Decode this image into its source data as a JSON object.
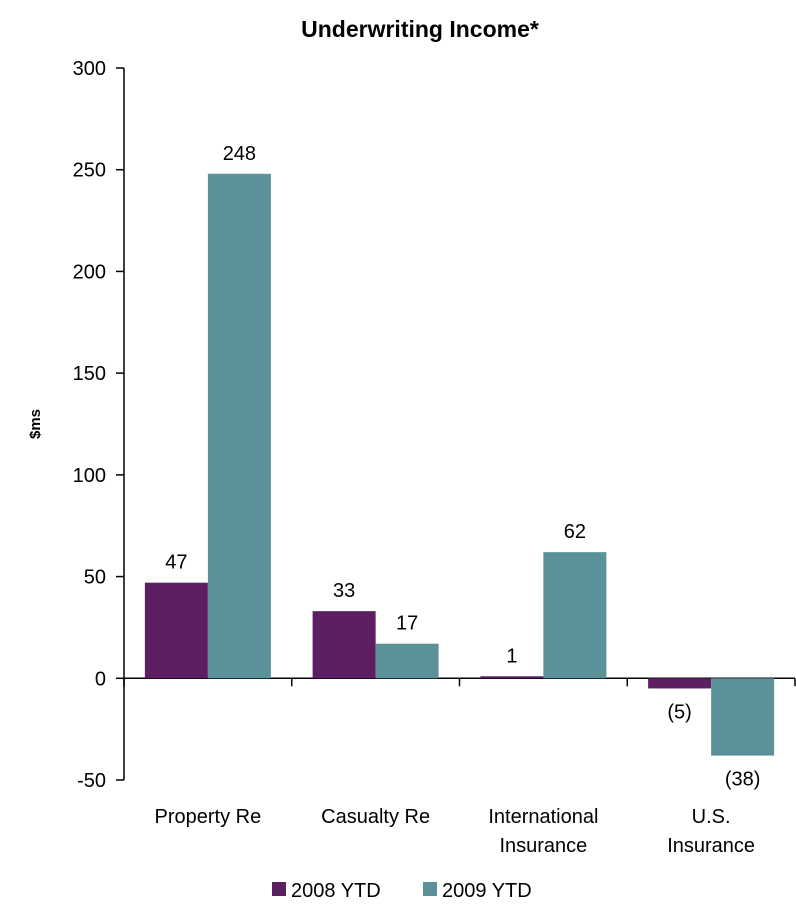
{
  "chart_data": {
    "type": "bar",
    "title": "Underwriting Income*",
    "ylabel": "$ms",
    "xlabel": "",
    "ylim": [
      -50,
      300
    ],
    "yticks": [
      300,
      250,
      200,
      150,
      100,
      50,
      0,
      -50
    ],
    "grid": false,
    "legend_position": "bottom",
    "categories": [
      [
        "Property Re"
      ],
      [
        "Casualty Re"
      ],
      [
        "International",
        "Insurance"
      ],
      [
        "U.S.",
        "Insurance"
      ]
    ],
    "series": [
      {
        "name": "2008 YTD",
        "color": "#5b1f62",
        "values": [
          47,
          33,
          1,
          -5
        ],
        "labels": [
          "47",
          "33",
          "1",
          "(5)"
        ]
      },
      {
        "name": "2009 YTD",
        "color": "#5b9199",
        "values": [
          248,
          17,
          62,
          -38
        ],
        "labels": [
          "248",
          "17",
          "62",
          "(38)"
        ]
      }
    ]
  }
}
